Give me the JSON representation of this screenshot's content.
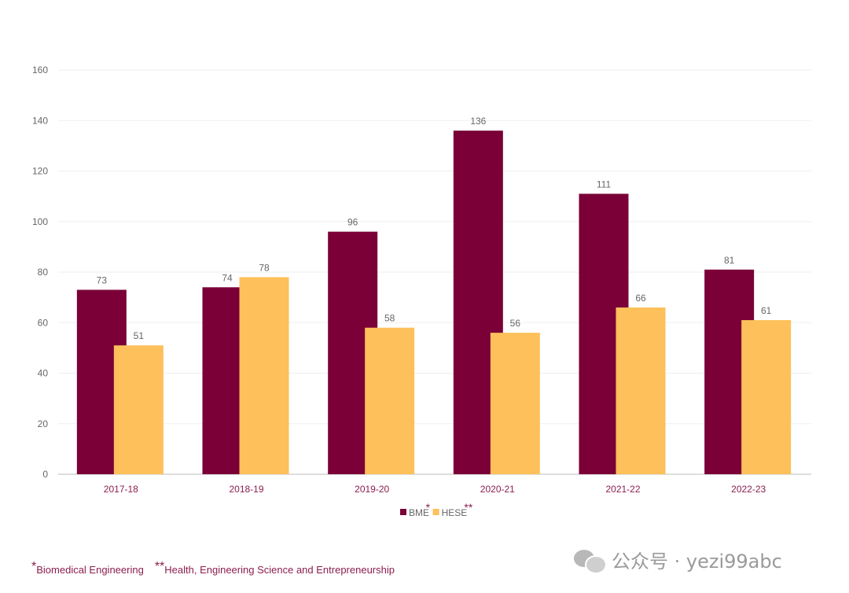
{
  "chart_data": {
    "type": "bar",
    "categories": [
      "2017-18",
      "2018-19",
      "2019-20",
      "2020-21",
      "2021-22",
      "2022-23"
    ],
    "series": [
      {
        "name": "BME",
        "values": [
          73,
          74,
          96,
          136,
          111,
          81
        ],
        "color": "#7a0037"
      },
      {
        "name": "HESE",
        "values": [
          51,
          78,
          58,
          56,
          66,
          61
        ],
        "color": "#fdc05a"
      }
    ],
    "ylim": [
      0,
      160
    ],
    "yticks": [
      "0",
      "20",
      "40",
      "60",
      "80",
      "100",
      "120",
      "140",
      "160"
    ],
    "grid": true,
    "legend_position": "bottom",
    "legend_markers": [
      "*",
      "**"
    ]
  },
  "footnotes": [
    {
      "marker": "*",
      "text": "Biomedical Engineering"
    },
    {
      "marker": "**",
      "text": "Health, Engineering Science and Entrepreneurship"
    }
  ],
  "watermark": {
    "text": "公众号 · yezi99abc",
    "icon": "wechat-icon"
  }
}
